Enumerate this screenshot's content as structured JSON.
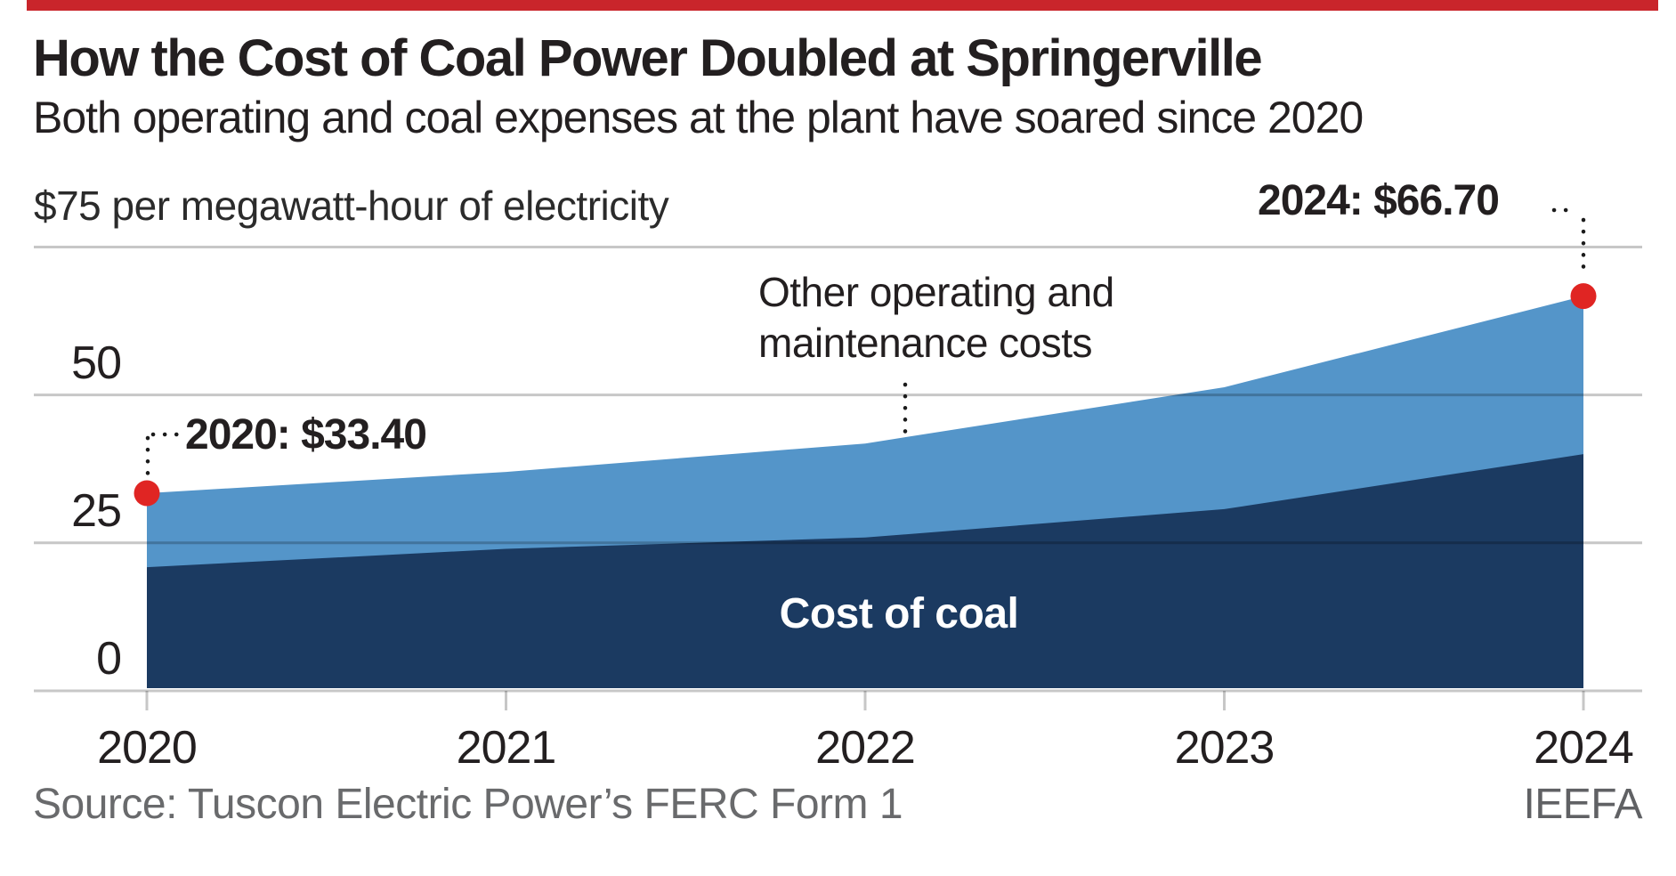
{
  "accent_bar": {
    "color": "#c9252b"
  },
  "header": {
    "title": "How the Cost of Coal Power Doubled at Springerville",
    "subtitle": "Both operating and coal expenses at the plant have soared since 2020"
  },
  "chart_data": {
    "type": "area",
    "stacked": true,
    "title": "How the Cost of Coal Power Doubled at Springerville",
    "unit_label": "$75 per megawatt-hour of electricity",
    "x": [
      2020,
      2021,
      2022,
      2023,
      2024
    ],
    "x_tick_labels": [
      "2020",
      "2021",
      "2022",
      "2023",
      "2024"
    ],
    "series": [
      {
        "name": "Cost of coal",
        "values": [
          20.9,
          24.0,
          25.9,
          30.7,
          40.0
        ],
        "color": "#1b3a61"
      },
      {
        "name": "Other operating and maintenance costs",
        "values": [
          12.5,
          13.0,
          15.9,
          20.6,
          26.7
        ],
        "color": "#5495c9"
      }
    ],
    "totals": [
      33.4,
      37.0,
      41.8,
      51.3,
      66.7
    ],
    "ylim": [
      0,
      75
    ],
    "yticks": [
      0,
      25,
      50
    ],
    "grid": true,
    "grid_color": "rgba(0,0,0,0.22)",
    "marker_color": "#e02523",
    "connector_color": "#1b1b1b",
    "annotations": [
      {
        "label": "2020: $33.40",
        "x": 2020,
        "y": 33.4
      },
      {
        "label": "2024: $66.70",
        "x": 2024,
        "y": 66.7
      }
    ],
    "inline_labels": {
      "coal": "Cost of coal",
      "other_line1": "Other operating and",
      "other_line2": "maintenance costs"
    }
  },
  "footer": {
    "source": "Source: Tuscon Electric Power’s FERC Form 1",
    "credit": "IEEFA"
  }
}
